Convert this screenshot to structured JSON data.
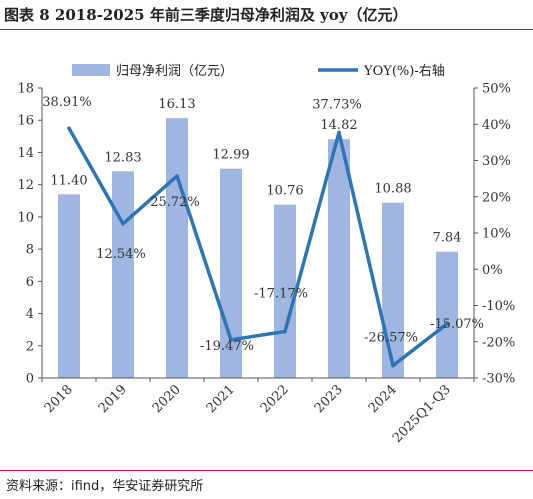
{
  "title": "图表 8 2018-2025 年前三季度归母净利润及 yoy（亿元）",
  "source": "资料来源：ifind，华安证券研究所",
  "chart_data": {
    "type": "bar",
    "categories": [
      "2018",
      "2019",
      "2020",
      "2021",
      "2022",
      "2023",
      "2024",
      "2025Q1-Q3"
    ],
    "series": [
      {
        "name": "归母净利润（亿元）",
        "type": "bar",
        "axis": "left",
        "color": "#9fb6e0",
        "values": [
          11.4,
          12.83,
          16.13,
          12.99,
          10.76,
          14.82,
          10.88,
          7.84
        ],
        "labels": [
          "11.40",
          "12.83",
          "16.13",
          "12.99",
          "10.76",
          "14.82",
          "10.88",
          "7.84"
        ]
      },
      {
        "name": "YOY(%)-右轴",
        "type": "line",
        "axis": "right",
        "color": "#2e75b6",
        "values": [
          38.91,
          12.54,
          25.72,
          -19.47,
          -17.17,
          37.73,
          -26.57,
          -15.07
        ],
        "labels": [
          "38.91%",
          "12.54%",
          "25.72%",
          "-19.47%",
          "-17.17%",
          "37.73%",
          "-26.57%",
          "-15.07%"
        ]
      }
    ],
    "y_left": {
      "min": 0,
      "max": 18,
      "step": 2,
      "ticks": [
        "0",
        "2",
        "4",
        "6",
        "8",
        "10",
        "12",
        "14",
        "16",
        "18"
      ]
    },
    "y_right": {
      "min": -30,
      "max": 50,
      "step": 10,
      "ticks": [
        "-30%",
        "-20%",
        "-10%",
        "0%",
        "10%",
        "20%",
        "30%",
        "40%",
        "50%"
      ]
    },
    "legend_position": "top",
    "grid": false
  }
}
